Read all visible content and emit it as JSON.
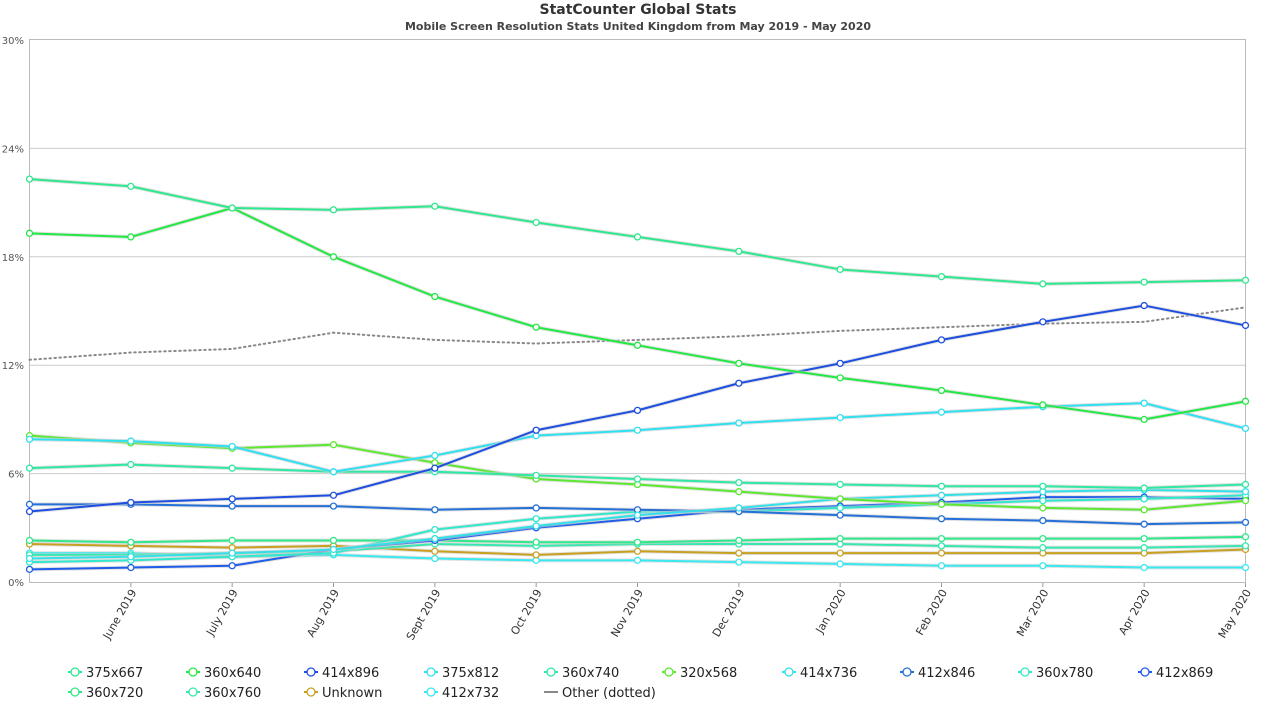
{
  "chart_data": {
    "type": "line",
    "title": "StatCounter Global Stats",
    "subtitle": "Mobile Screen Resolution Stats United Kingdom from May 2019 - May 2020",
    "y_ticks": [
      "0%",
      "6%",
      "12%",
      "18%",
      "24%",
      "30%"
    ],
    "ylim": [
      0,
      30
    ],
    "grid": true,
    "legend_position": "bottom",
    "x": [
      "May 2019",
      "June 2019",
      "July 2019",
      "Aug 2019",
      "Sept 2019",
      "Oct 2019",
      "Nov 2019",
      "Dec 2019",
      "Jan 2020",
      "Feb 2020",
      "Mar 2020",
      "Apr 2020",
      "May 2020"
    ],
    "x_labels": [
      "June 2019",
      "July 2019",
      "Aug 2019",
      "Sept 2019",
      "Oct 2019",
      "Nov 2019",
      "Dec 2019",
      "Jan 2020",
      "Feb 2020",
      "Mar 2020",
      "Apr 2020",
      "May 2020"
    ],
    "series": [
      {
        "name": "375x667",
        "color": "#2ee88e",
        "values": [
          22.3,
          21.9,
          20.7,
          20.6,
          20.8,
          19.9,
          19.1,
          18.3,
          17.3,
          16.9,
          16.5,
          16.6,
          16.7
        ]
      },
      {
        "name": "360x640",
        "color": "#22e844",
        "values": [
          19.3,
          19.1,
          20.7,
          18.0,
          15.8,
          14.1,
          13.1,
          12.1,
          11.3,
          10.6,
          9.8,
          9.0,
          10.0
        ]
      },
      {
        "name": "414x896",
        "color": "#1d4ee0",
        "values": [
          3.9,
          4.4,
          4.6,
          4.8,
          6.3,
          8.4,
          9.5,
          11.0,
          12.1,
          13.4,
          14.4,
          15.3,
          14.2
        ]
      },
      {
        "name": "375x812",
        "color": "#2ee0f0",
        "values": [
          7.9,
          7.8,
          7.5,
          6.1,
          7.0,
          8.1,
          8.4,
          8.8,
          9.1,
          9.4,
          9.7,
          9.9,
          8.5
        ]
      },
      {
        "name": "360x740",
        "color": "#2ee8a4",
        "values": [
          6.3,
          6.5,
          6.3,
          6.1,
          6.1,
          5.9,
          5.7,
          5.5,
          5.4,
          5.3,
          5.3,
          5.2,
          5.4
        ]
      },
      {
        "name": "320x568",
        "color": "#5ce830",
        "values": [
          8.1,
          7.7,
          7.4,
          7.6,
          6.6,
          5.7,
          5.4,
          5.0,
          4.6,
          4.3,
          4.1,
          4.0,
          4.5
        ]
      },
      {
        "name": "414x736",
        "color": "#33e0e8",
        "values": [
          1.3,
          1.4,
          1.6,
          1.8,
          2.4,
          3.1,
          3.7,
          4.1,
          4.6,
          4.8,
          5.0,
          5.1,
          5.0
        ]
      },
      {
        "name": "412x846",
        "color": "#2470d8",
        "values": [
          4.3,
          4.3,
          4.2,
          4.2,
          4.0,
          4.1,
          4.0,
          3.9,
          3.7,
          3.5,
          3.4,
          3.2,
          3.3
        ]
      },
      {
        "name": "360x780",
        "color": "#30e8cc",
        "values": [
          1.1,
          1.2,
          1.4,
          1.6,
          2.9,
          3.5,
          3.9,
          3.9,
          4.1,
          4.3,
          4.5,
          4.6,
          4.8
        ]
      },
      {
        "name": "412x869",
        "color": "#1f5ce8",
        "values": [
          0.7,
          0.8,
          0.9,
          1.8,
          2.3,
          3.0,
          3.5,
          4.0,
          4.2,
          4.4,
          4.7,
          4.7,
          4.6
        ]
      },
      {
        "name": "360x720",
        "color": "#30e88a",
        "values": [
          2.3,
          2.2,
          2.3,
          2.3,
          2.3,
          2.2,
          2.2,
          2.3,
          2.4,
          2.4,
          2.4,
          2.4,
          2.5
        ]
      },
      {
        "name": "360x760",
        "color": "#36e8b0",
        "values": [
          1.5,
          1.5,
          1.6,
          1.7,
          2.1,
          2.0,
          2.1,
          2.1,
          2.1,
          2.0,
          1.9,
          1.9,
          2.0
        ]
      },
      {
        "name": "Unknown",
        "color": "#c8a020",
        "values": [
          2.1,
          2.0,
          1.9,
          2.0,
          1.7,
          1.5,
          1.7,
          1.6,
          1.6,
          1.6,
          1.6,
          1.6,
          1.8
        ]
      },
      {
        "name": "412x732",
        "color": "#3ae8f0",
        "values": [
          1.6,
          1.6,
          1.4,
          1.5,
          1.3,
          1.2,
          1.2,
          1.1,
          1.0,
          0.9,
          0.9,
          0.8,
          0.8
        ]
      },
      {
        "name": "Other (dotted)",
        "color": "#888888",
        "dotted": true,
        "values": [
          12.3,
          12.7,
          12.9,
          13.8,
          13.4,
          13.2,
          13.4,
          13.6,
          13.9,
          14.1,
          14.3,
          14.4,
          15.2
        ]
      }
    ]
  }
}
